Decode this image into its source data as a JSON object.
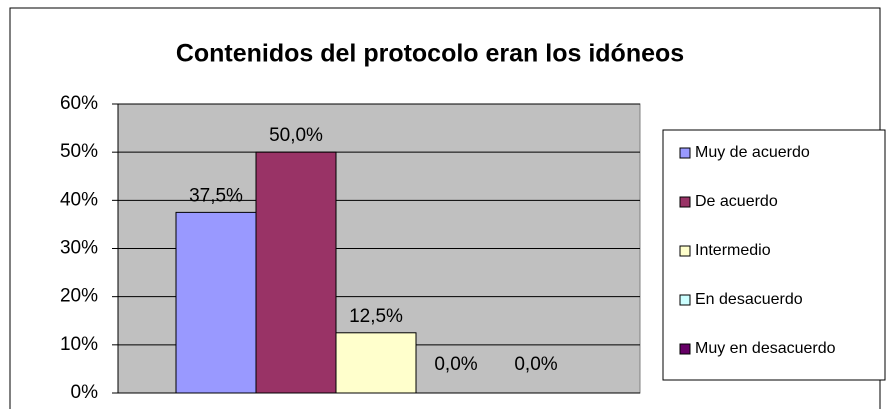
{
  "chart_data": {
    "type": "bar",
    "title": "Contenidos del protocolo eran los idóneos",
    "categories": [
      null
    ],
    "series": [
      {
        "name": "Muy de acuerdo",
        "color": "#9999ff",
        "values": [
          37.5
        ],
        "value_labels": [
          "37,5%"
        ]
      },
      {
        "name": "De acuerdo",
        "color": "#993366",
        "values": [
          50
        ],
        "value_labels": [
          "50,0%"
        ]
      },
      {
        "name": "Intermedio",
        "color": "#ffffcc",
        "values": [
          12.5
        ],
        "value_labels": [
          "12,5%"
        ]
      },
      {
        "name": "En desacuerdo",
        "color": "#ccffff",
        "values": [
          0
        ],
        "value_labels": [
          "0,0%"
        ]
      },
      {
        "name": "Muy en desacuerdo",
        "color": "#660066",
        "values": [
          0
        ],
        "value_labels": [
          "0,0%"
        ]
      }
    ],
    "ylim": [
      0,
      60
    ],
    "yticks": [
      {
        "value": 0,
        "label": "0%"
      },
      {
        "value": 10,
        "label": "10%"
      },
      {
        "value": 20,
        "label": "20%"
      },
      {
        "value": 30,
        "label": "30%"
      },
      {
        "value": 40,
        "label": "40%"
      },
      {
        "value": 50,
        "label": "50%"
      },
      {
        "value": 60,
        "label": "60%"
      }
    ],
    "grid": true,
    "legend": "right"
  }
}
